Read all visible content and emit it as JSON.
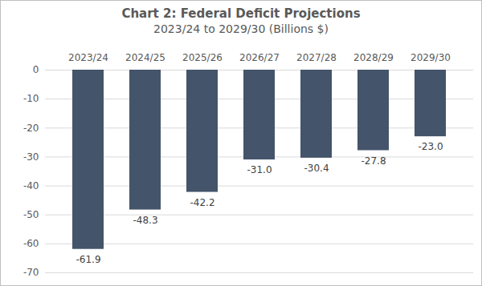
{
  "chart_data": {
    "type": "bar",
    "title": "Chart 2: Federal Deficit Projections",
    "subtitle": "2023/24 to 2029/30 (Billions $)",
    "categories": [
      "2023/24",
      "2024/25",
      "2025/26",
      "2026/27",
      "2027/28",
      "2028/29",
      "2029/30"
    ],
    "values": [
      -61.9,
      -48.3,
      -42.2,
      -31.0,
      -30.4,
      -27.8,
      -23.0
    ],
    "value_labels": [
      "-61.9",
      "-48.3",
      "-42.2",
      "-31.0",
      "-30.4",
      "-27.8",
      "-23.0"
    ],
    "color": "#44546a",
    "ylim": [
      -70,
      0
    ],
    "yticks": [
      -70,
      -60,
      -50,
      -40,
      -30,
      -20,
      -10,
      0
    ],
    "grid": true,
    "data_labels": true
  }
}
